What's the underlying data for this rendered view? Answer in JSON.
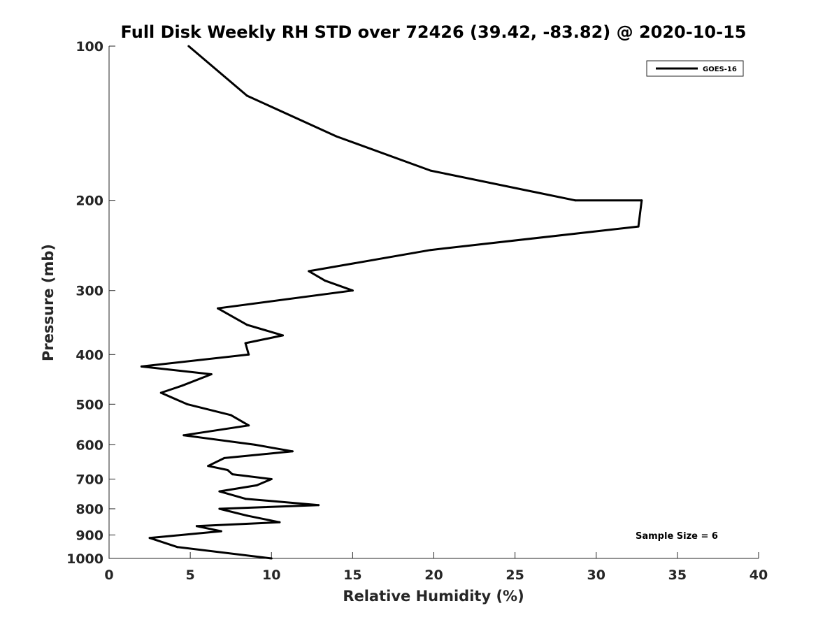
{
  "chart_data": {
    "type": "line",
    "title": "Full Disk Weekly RH STD over 72426 (39.42, -83.82) @ 2020-10-15",
    "xlabel": "Relative Humidity (%)",
    "ylabel": "Pressure (mb)",
    "xlim": [
      0,
      40
    ],
    "ylim": [
      100,
      1000
    ],
    "y_scale": "log",
    "y_reversed": true,
    "x_ticks": [
      "0",
      "5",
      "10",
      "15",
      "20",
      "25",
      "30",
      "35",
      "40"
    ],
    "y_ticks": [
      "100",
      "200",
      "300",
      "400",
      "500",
      "600",
      "700",
      "800",
      "900",
      "1000"
    ],
    "grid": false,
    "legend_position": "top-right",
    "annotation": "Sample Size = 6",
    "series": [
      {
        "name": "GOES-16",
        "color": "#000000",
        "x": [
          4.9,
          8.5,
          14.0,
          19.8,
          28.7,
          32.8,
          32.6,
          19.8,
          12.3,
          13.3,
          15.0,
          6.7,
          8.5,
          10.7,
          8.4,
          8.6,
          2.0,
          6.3,
          4.5,
          3.2,
          4.8,
          7.5,
          8.6,
          4.6,
          9.0,
          11.3,
          7.1,
          6.1,
          7.3,
          7.6,
          10.0,
          9.1,
          6.8,
          8.4,
          12.9,
          6.8,
          8.5,
          10.5,
          5.4,
          6.9,
          2.5,
          4.2,
          10.0
        ],
        "y": [
          100,
          125,
          150,
          175,
          200,
          200,
          225,
          250,
          275,
          287,
          300,
          325,
          350,
          367,
          380,
          400,
          422,
          437,
          460,
          475,
          500,
          525,
          550,
          575,
          600,
          618,
          637,
          660,
          672,
          685,
          700,
          720,
          740,
          765,
          787,
          800,
          825,
          850,
          865,
          885,
          912,
          950,
          1000
        ]
      }
    ]
  }
}
